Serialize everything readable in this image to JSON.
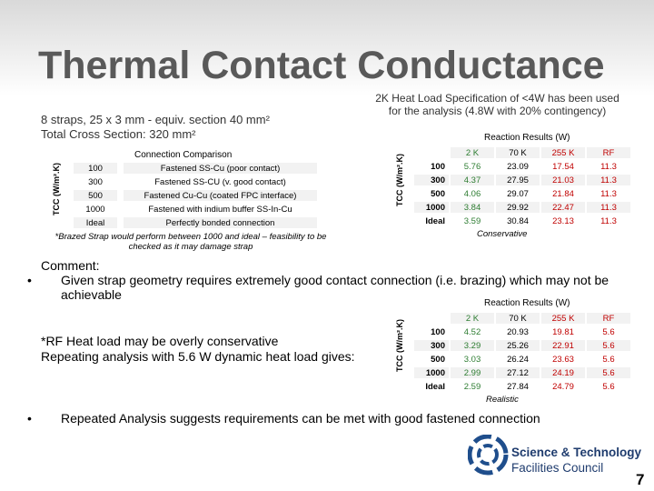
{
  "title": "Thermal Contact Conductance",
  "strap_note": [
    "8 straps, 25 x 3 mm - equiv. section 40 mm²",
    "Total Cross Section: 320 mm²"
  ],
  "spec_note": "2K Heat Load Specification of <4W has been used for the analysis (4.8W with 20% contingency)",
  "comparison_table": {
    "axis_label": "TCC (W/m².K)",
    "title": "Connection Comparison",
    "rows": [
      [
        "100",
        "Fastened SS-Cu (poor contact)"
      ],
      [
        "300",
        "Fastened SS-CU (v. good contact)"
      ],
      [
        "500",
        "Fastened Cu-Cu (coated FPC interface)"
      ],
      [
        "1000",
        "Fastened with indium buffer SS-In-Cu"
      ],
      [
        "Ideal",
        "Perfectly bonded connection"
      ]
    ],
    "footnote": "*Brazed Strap would perform between 1000 and ideal – feasibility to be checked as it may damage strap"
  },
  "results_table_1": {
    "axis_label": "TCC (W/m².K)",
    "header": "Reaction Results (W)",
    "columns": [
      "2 K",
      "70 K",
      "255 K",
      "RF"
    ],
    "rows": [
      [
        "100",
        "5.76",
        "23.09",
        "17.54",
        "11.3"
      ],
      [
        "300",
        "4.37",
        "27.95",
        "21.03",
        "11.3"
      ],
      [
        "500",
        "4.06",
        "29.07",
        "21.84",
        "11.3"
      ],
      [
        "1000",
        "3.84",
        "29.92",
        "22.47",
        "11.3"
      ],
      [
        "Ideal",
        "3.59",
        "30.84",
        "23.13",
        "11.3"
      ]
    ],
    "note": "Conservative"
  },
  "comment": {
    "heading": "Comment:",
    "bullet": "Given strap geometry requires extremely good contact connection (i.e. brazing) which may not be achievable"
  },
  "rf_note": [
    "*RF Heat load may be overly conservative",
    "Repeating analysis with 5.6 W dynamic heat load gives:"
  ],
  "results_table_2": {
    "axis_label": "TCC (W/m².K)",
    "header": "Reaction Results (W)",
    "columns": [
      "2 K",
      "70 K",
      "255 K",
      "RF"
    ],
    "rows": [
      [
        "100",
        "4.52",
        "20.93",
        "19.81",
        "5.6"
      ],
      [
        "300",
        "3.29",
        "25.26",
        "22.91",
        "5.6"
      ],
      [
        "500",
        "3.03",
        "26.24",
        "23.63",
        "5.6"
      ],
      [
        "1000",
        "2.99",
        "27.12",
        "24.19",
        "5.6"
      ],
      [
        "Ideal",
        "2.59",
        "27.84",
        "24.79",
        "5.6"
      ]
    ],
    "note": "Realistic"
  },
  "conclusion": "Repeated Analysis suggests requirements can be met with good fastened connection",
  "logo": [
    "Science & Technology",
    "Facilities Council"
  ],
  "page_number": "7"
}
